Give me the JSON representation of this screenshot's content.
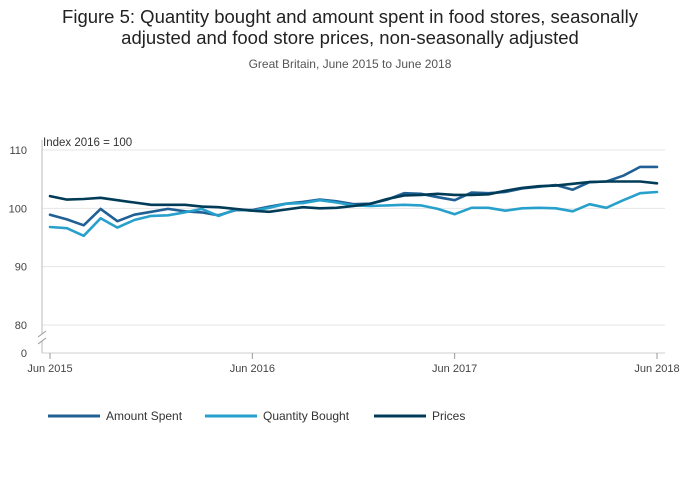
{
  "chart_data": {
    "type": "line",
    "title_line1": "Figure 5: Quantity bought and amount spent in food stores, seasonally",
    "title_line2": "adjusted and food store prices, non-seasonally adjusted",
    "subtitle": "Great Britain, June 2015 to June 2018",
    "ylabel": "Index 2016 = 100",
    "yticks": [
      "110",
      "100",
      "90",
      "80",
      "0"
    ],
    "xticks": [
      "Jun 2015",
      "Jun 2016",
      "Jun 2017",
      "Jun 2018"
    ],
    "ylim": [
      78,
      112
    ],
    "axis_break": true,
    "x": [
      "Jun 2015",
      "Jul 2015",
      "Aug 2015",
      "Sep 2015",
      "Oct 2015",
      "Nov 2015",
      "Dec 2015",
      "Jan 2016",
      "Feb 2016",
      "Mar 2016",
      "Apr 2016",
      "May 2016",
      "Jun 2016",
      "Jul 2016",
      "Aug 2016",
      "Sep 2016",
      "Oct 2016",
      "Nov 2016",
      "Dec 2016",
      "Jan 2017",
      "Feb 2017",
      "Mar 2017",
      "Apr 2017",
      "May 2017",
      "Jun 2017",
      "Jul 2017",
      "Aug 2017",
      "Sep 2017",
      "Oct 2017",
      "Nov 2017",
      "Dec 2017",
      "Jan 2018",
      "Feb 2018",
      "Mar 2018",
      "Apr 2018",
      "May 2018",
      "Jun 2018"
    ],
    "series": [
      {
        "name": "Amount Spent",
        "color": "#206095",
        "values": [
          98.9,
          98.1,
          97.1,
          99.9,
          97.8,
          98.9,
          99.4,
          99.9,
          99.5,
          99.3,
          98.8,
          99.7,
          99.7,
          100.3,
          100.8,
          101.1,
          101.5,
          101.2,
          100.7,
          100.8,
          101.5,
          102.6,
          102.5,
          101.9,
          101.4,
          102.7,
          102.6,
          102.8,
          103.4,
          103.7,
          104.0,
          103.2,
          104.5,
          104.6,
          105.6,
          107.1,
          107.1
        ]
      },
      {
        "name": "Quantity Bought",
        "color": "#27a0cc",
        "values": [
          96.8,
          96.6,
          95.3,
          98.3,
          96.7,
          98.0,
          98.7,
          98.8,
          99.3,
          99.9,
          98.7,
          99.8,
          99.6,
          100.1,
          100.8,
          100.9,
          101.4,
          101.0,
          100.5,
          100.4,
          100.5,
          100.6,
          100.5,
          99.9,
          99.0,
          100.1,
          100.1,
          99.6,
          100.0,
          100.1,
          100.0,
          99.5,
          100.7,
          100.1,
          101.4,
          102.6,
          102.8
        ]
      },
      {
        "name": "Prices",
        "color": "#003c57",
        "values": [
          102.1,
          101.5,
          101.6,
          101.8,
          101.4,
          101.0,
          100.6,
          100.6,
          100.6,
          100.3,
          100.2,
          99.9,
          99.6,
          99.4,
          99.8,
          100.2,
          100.0,
          100.1,
          100.4,
          100.8,
          101.6,
          102.2,
          102.3,
          102.5,
          102.3,
          102.3,
          102.4,
          103.0,
          103.5,
          103.8,
          103.9,
          104.2,
          104.5,
          104.6,
          104.6,
          104.6,
          104.3
        ]
      }
    ]
  }
}
